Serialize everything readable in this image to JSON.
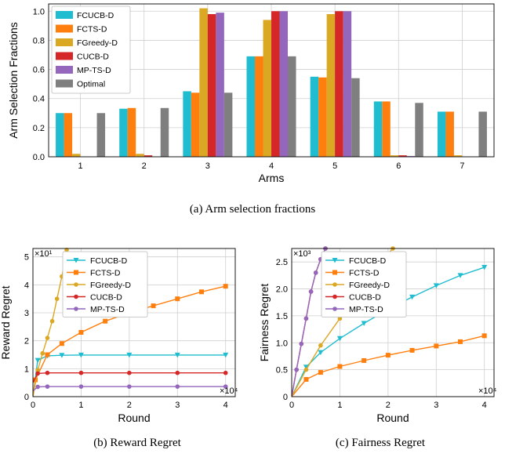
{
  "chart_data": [
    {
      "type": "bar",
      "xlabel": "Arms",
      "ylabel": "Arm Selection Fractions",
      "ylim": [
        0,
        1.05
      ],
      "yticks": [
        "0.0",
        "0.2",
        "0.4",
        "0.6",
        "0.8",
        "1.0"
      ],
      "categories": [
        "1",
        "2",
        "3",
        "4",
        "5",
        "6",
        "7"
      ],
      "grid": true,
      "legend_position": "top-left",
      "series": [
        {
          "name": "FCUCB-D",
          "color": "#1fbdcf",
          "values": [
            0.3,
            0.33,
            0.45,
            0.69,
            0.55,
            0.38,
            0.31
          ]
        },
        {
          "name": "FCTS-D",
          "color": "#ff7f0e",
          "values": [
            0.3,
            0.335,
            0.44,
            0.69,
            0.545,
            0.38,
            0.31
          ]
        },
        {
          "name": "FGreedy-D",
          "color": "#dba824",
          "values": [
            0.02,
            0.02,
            1.02,
            0.94,
            0.98,
            0.01,
            0.01
          ]
        },
        {
          "name": "CUCB-D",
          "color": "#d62728",
          "values": [
            0.0,
            0.01,
            0.98,
            1.0,
            1.0,
            0.01,
            0.0
          ]
        },
        {
          "name": "MP-TS-D",
          "color": "#9467bd",
          "values": [
            0.0,
            0.0,
            0.99,
            1.0,
            1.0,
            0.005,
            0.0
          ]
        },
        {
          "name": "Optimal",
          "color": "#7f7f7f",
          "values": [
            0.3,
            0.335,
            0.44,
            0.69,
            0.54,
            0.37,
            0.31
          ]
        }
      ]
    },
    {
      "type": "line",
      "xlabel": "Round",
      "ylabel": "Reward Regret",
      "x_scale_label": "×10⁴",
      "y_scale_label": "×10¹",
      "xlim": [
        0,
        4.2
      ],
      "ylim": [
        0,
        5.3
      ],
      "xticks": [
        "0",
        "1",
        "2",
        "3",
        "4"
      ],
      "yticks": [
        "0",
        "1",
        "2",
        "3",
        "4",
        "5"
      ],
      "legend_position": "top-center",
      "series": [
        {
          "name": "FCUCB-D",
          "color": "#1fbdcf",
          "marker": "triangle-down",
          "x": [
            0,
            0.1,
            0.3,
            0.6,
            1.0,
            2.0,
            3.0,
            4.0
          ],
          "y": [
            0,
            1.3,
            1.46,
            1.48,
            1.49,
            1.49,
            1.49,
            1.49
          ]
        },
        {
          "name": "FCTS-D",
          "color": "#ff7f0e",
          "marker": "square",
          "x": [
            0,
            0.05,
            0.3,
            0.6,
            1.0,
            1.5,
            2.0,
            2.5,
            3.0,
            3.5,
            4.0
          ],
          "y": [
            0,
            0.6,
            1.5,
            1.9,
            2.3,
            2.7,
            3.0,
            3.25,
            3.5,
            3.75,
            3.95
          ]
        },
        {
          "name": "FGreedy-D",
          "color": "#dba824",
          "marker": "circle",
          "x": [
            0,
            0.1,
            0.2,
            0.3,
            0.4,
            0.5,
            0.6,
            0.7
          ],
          "y": [
            0,
            0.95,
            1.55,
            2.1,
            2.7,
            3.5,
            4.3,
            5.25
          ]
        },
        {
          "name": "CUCB-D",
          "color": "#d62728",
          "marker": "circle",
          "x": [
            0,
            0.1,
            0.3,
            1.0,
            2.0,
            3.0,
            4.0
          ],
          "y": [
            0.5,
            0.83,
            0.85,
            0.85,
            0.85,
            0.85,
            0.85
          ]
        },
        {
          "name": "MP-TS-D",
          "color": "#9467bd",
          "marker": "circle",
          "x": [
            0,
            0.1,
            0.3,
            1.0,
            2.0,
            3.0,
            4.0
          ],
          "y": [
            0.2,
            0.35,
            0.36,
            0.36,
            0.36,
            0.36,
            0.36
          ]
        }
      ]
    },
    {
      "type": "line",
      "xlabel": "Round",
      "ylabel": "Fairness Regret",
      "x_scale_label": "×10⁴",
      "y_scale_label": "×10³",
      "xlim": [
        0,
        4.2
      ],
      "ylim": [
        0,
        2.75
      ],
      "xticks": [
        "0",
        "1",
        "2",
        "3",
        "4"
      ],
      "yticks": [
        "0",
        "0.5",
        "1.0",
        "1.5",
        "2.0",
        "2.5"
      ],
      "legend_position": "top-center",
      "series": [
        {
          "name": "FCUCB-D",
          "color": "#1fbdcf",
          "marker": "triangle-down",
          "x": [
            0,
            0.3,
            0.6,
            1.0,
            1.5,
            2.0,
            2.5,
            3.0,
            3.5,
            4.0
          ],
          "y": [
            0,
            0.55,
            0.82,
            1.08,
            1.36,
            1.62,
            1.85,
            2.06,
            2.25,
            2.4
          ]
        },
        {
          "name": "FCTS-D",
          "color": "#ff7f0e",
          "marker": "square",
          "x": [
            0,
            0.3,
            0.6,
            1.0,
            1.5,
            2.0,
            2.5,
            3.0,
            3.5,
            4.0
          ],
          "y": [
            0,
            0.32,
            0.45,
            0.56,
            0.67,
            0.77,
            0.86,
            0.94,
            1.02,
            1.13
          ]
        },
        {
          "name": "FGreedy-D",
          "color": "#dba824",
          "marker": "circle",
          "x": [
            0,
            0.3,
            0.6,
            1.0,
            1.4,
            1.8,
            2.1
          ],
          "y": [
            0,
            0.5,
            0.95,
            1.45,
            1.95,
            2.45,
            2.75
          ]
        },
        {
          "name": "CUCB-D",
          "color": "#d62728",
          "marker": "circle",
          "x": [
            0,
            0.1,
            0.2,
            0.3,
            0.4,
            0.5,
            0.6,
            0.7
          ],
          "y": [
            0,
            0.5,
            0.98,
            1.45,
            1.95,
            2.3,
            2.55,
            2.75
          ]
        },
        {
          "name": "MP-TS-D",
          "color": "#9467bd",
          "marker": "circle",
          "x": [
            0,
            0.1,
            0.2,
            0.3,
            0.4,
            0.5,
            0.6,
            0.7
          ],
          "y": [
            0,
            0.5,
            0.98,
            1.45,
            1.95,
            2.3,
            2.55,
            2.75
          ]
        }
      ]
    }
  ],
  "captions": {
    "a": "(a)  Arm selection fractions",
    "b": "(b)  Reward Regret",
    "c": "(c)  Fairness Regret"
  }
}
